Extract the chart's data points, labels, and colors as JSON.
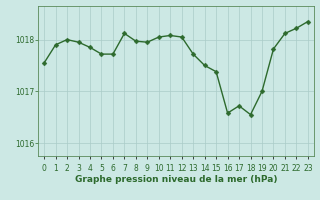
{
  "x": [
    0,
    1,
    2,
    3,
    4,
    5,
    6,
    7,
    8,
    9,
    10,
    11,
    12,
    13,
    14,
    15,
    16,
    17,
    18,
    19,
    20,
    21,
    22,
    23
  ],
  "y": [
    1017.55,
    1017.9,
    1018.0,
    1017.95,
    1017.85,
    1017.72,
    1017.72,
    1018.12,
    1017.97,
    1017.95,
    1018.05,
    1018.08,
    1018.05,
    1017.72,
    1017.5,
    1017.38,
    1016.58,
    1016.72,
    1016.55,
    1017.0,
    1017.82,
    1018.12,
    1018.22,
    1018.35
  ],
  "line_color": "#2d6a2d",
  "marker_color": "#2d6a2d",
  "bg_color": "#cce8e4",
  "grid_color": "#aaccc8",
  "axis_label_color": "#2d6a2d",
  "spine_color": "#5a8a5a",
  "title": "Graphe pression niveau de la mer (hPa)",
  "yticks": [
    1016,
    1017,
    1018
  ],
  "ylim": [
    1015.75,
    1018.65
  ],
  "xlim": [
    -0.5,
    23.5
  ],
  "marker_size": 2.5,
  "linewidth": 1.0,
  "tick_fontsize": 5.5,
  "title_fontsize": 6.5
}
